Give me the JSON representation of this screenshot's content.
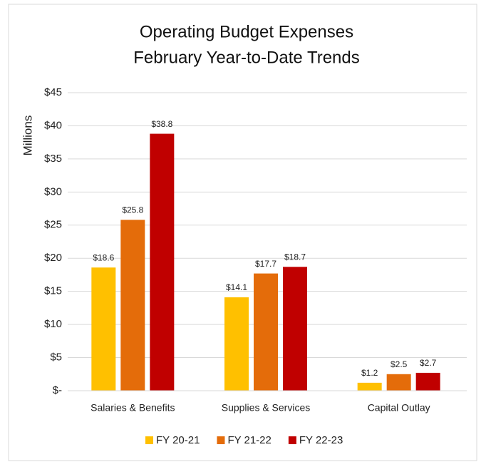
{
  "chart_data": {
    "type": "bar",
    "title": [
      "Operating Budget Expenses",
      "February Year-to-Date Trends"
    ],
    "y_label": "Millions",
    "categories": [
      "Salaries & Benefits",
      "Supplies & Services",
      "Capital Outlay"
    ],
    "series": [
      {
        "name": "FY 20-21",
        "color": "#ffc000",
        "values": [
          18.6,
          14.1,
          1.2
        ],
        "value_labels": [
          "$18.6",
          "$14.1",
          "$1.2"
        ]
      },
      {
        "name": "FY 21-22",
        "color": "#e46c0a",
        "values": [
          25.8,
          17.7,
          2.5
        ],
        "value_labels": [
          "$25.8",
          "$17.7",
          "$2.5"
        ]
      },
      {
        "name": "FY 22-23",
        "color": "#c00000",
        "values": [
          38.8,
          18.7,
          2.7
        ],
        "value_labels": [
          "$38.8",
          "$18.7",
          "$2.7"
        ]
      }
    ],
    "ylim": [
      0,
      45
    ],
    "yticks": [
      {
        "value": 0,
        "label": "$-"
      },
      {
        "value": 5,
        "label": "$5"
      },
      {
        "value": 10,
        "label": "$10"
      },
      {
        "value": 15,
        "label": "$15"
      },
      {
        "value": 20,
        "label": "$20"
      },
      {
        "value": 25,
        "label": "$25"
      },
      {
        "value": 30,
        "label": "$30"
      },
      {
        "value": 35,
        "label": "$35"
      },
      {
        "value": 40,
        "label": "$40"
      },
      {
        "value": 45,
        "label": "$45"
      }
    ],
    "grid": true,
    "legend": "bottom"
  }
}
